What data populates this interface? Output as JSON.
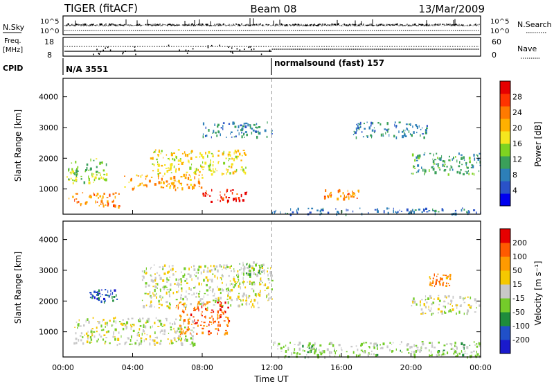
{
  "header": {
    "radar": "TIGER (fitACF)",
    "beam": "Beam 08",
    "date": "13/Mar/2009"
  },
  "nsky_panel": {
    "left_label": "N.Sky",
    "right_label": "N.Search",
    "left_ticks": [
      "10^5",
      "10^0"
    ],
    "right_ticks": [
      "10^5",
      "10^0"
    ]
  },
  "freq_panel": {
    "left_label_line1": "Freq.",
    "left_label_line2": "[MHz]",
    "left_ticks": [
      "18",
      "8"
    ],
    "right_ticks": [
      "60",
      "0"
    ],
    "right_label": "Nave"
  },
  "cpid_panel": {
    "label": "CPID",
    "programs": [
      {
        "name": "N/A 3551",
        "start_hour": 0
      },
      {
        "name": "normalsound (fast) 157",
        "start_hour": 12
      }
    ]
  },
  "x_axis": {
    "label": "Time UT",
    "ticks": [
      "00:00",
      "04:00",
      "08:00",
      "12:00",
      "16:00",
      "20:00",
      "00:00"
    ],
    "range_hours": [
      0,
      24
    ]
  },
  "power_panel": {
    "ylabel": "Slant Range [km]",
    "yticks": [
      "1000",
      "2000",
      "3000",
      "4000"
    ],
    "colorbar_label": "Power [dB]",
    "colorbar_ticks": [
      "4",
      "8",
      "12",
      "16",
      "20",
      "24",
      "28"
    ],
    "colorbar_colors": [
      "#0000ee",
      "#2a52c8",
      "#2d7fb8",
      "#3aa05a",
      "#7ed321",
      "#f5e61e",
      "#ffb000",
      "#ff7a00",
      "#ff3300",
      "#e60000"
    ]
  },
  "velocity_panel": {
    "ylabel": "Slant Range [km]",
    "yticks": [
      "1000",
      "2000",
      "3000",
      "4000"
    ],
    "colorbar_label": "Velocity [m s⁻¹]",
    "colorbar_ticks": [
      "200",
      "100",
      "50",
      "15",
      "-15",
      "-50",
      "-100",
      "-200"
    ],
    "colorbar_colors": [
      "#1a1acc",
      "#2050c8",
      "#1e8c3c",
      "#74cc2a",
      "#c8c8c8",
      "#f5c800",
      "#ff9a00",
      "#ff5a00",
      "#e60000"
    ]
  },
  "chart_data": [
    {
      "type": "heatmap",
      "title": "Power [dB]",
      "xlabel": "Time UT",
      "ylabel": "Slant Range [km]",
      "xlim": [
        0,
        24
      ],
      "ylim": [
        180,
        4600
      ],
      "scale": [
        0,
        32
      ],
      "regions": [
        {
          "t": [
            0.3,
            3.2
          ],
          "r": [
            450,
            900
          ],
          "value": 24
        },
        {
          "t": [
            3.5,
            8.0
          ],
          "r": [
            1000,
            1500
          ],
          "value": 22
        },
        {
          "t": [
            8.0,
            10.6
          ],
          "r": [
            600,
            1000
          ],
          "value": 30
        },
        {
          "t": [
            0.2,
            2.5
          ],
          "r": [
            1200,
            2000
          ],
          "value": 14
        },
        {
          "t": [
            5.0,
            10.5
          ],
          "r": [
            1500,
            2300
          ],
          "value": 18
        },
        {
          "t": [
            8.0,
            12.0
          ],
          "r": [
            2700,
            3200
          ],
          "value": 8
        },
        {
          "t": [
            15.0,
            17.0
          ],
          "r": [
            700,
            1000
          ],
          "value": 24
        },
        {
          "t": [
            16.5,
            21.0
          ],
          "r": [
            2700,
            3200
          ],
          "value": 8
        },
        {
          "t": [
            20.0,
            24.0
          ],
          "r": [
            1500,
            2200
          ],
          "value": 10
        },
        {
          "t": [
            12.0,
            24.0
          ],
          "r": [
            200,
            400
          ],
          "value": 6
        }
      ]
    },
    {
      "type": "heatmap",
      "title": "Velocity [m s^-1]",
      "xlabel": "Time UT",
      "ylabel": "Slant Range [km]",
      "xlim": [
        0,
        24
      ],
      "ylim": [
        180,
        4600
      ],
      "scale": [
        -250,
        250
      ],
      "regions": [
        {
          "t": [
            0.5,
            7.5
          ],
          "r": [
            600,
            1500
          ],
          "value": 0
        },
        {
          "t": [
            4.5,
            12.0
          ],
          "r": [
            1800,
            3200
          ],
          "value": 0
        },
        {
          "t": [
            6.5,
            9.5
          ],
          "r": [
            900,
            2000
          ],
          "value": 180
        },
        {
          "t": [
            1.5,
            3.2
          ],
          "r": [
            2000,
            2400
          ],
          "value": -180
        },
        {
          "t": [
            10.0,
            11.5
          ],
          "r": [
            2900,
            3300
          ],
          "value": -60
        },
        {
          "t": [
            12.0,
            24.0
          ],
          "r": [
            200,
            700
          ],
          "value": -40
        },
        {
          "t": [
            20.0,
            24.0
          ],
          "r": [
            1600,
            2200
          ],
          "value": 0
        },
        {
          "t": [
            21.0,
            22.3
          ],
          "r": [
            2500,
            2900
          ],
          "value": 150
        }
      ]
    }
  ]
}
